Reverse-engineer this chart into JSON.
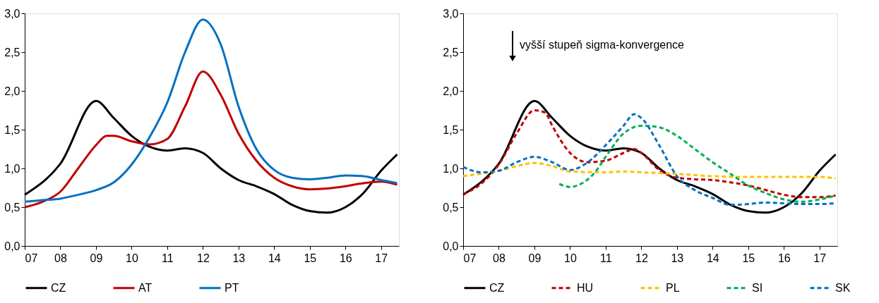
{
  "chart_data": [
    {
      "type": "line",
      "xlim": [
        7,
        17.5
      ],
      "xticks": [
        {
          "value": 7,
          "label": "07"
        },
        {
          "value": 8,
          "label": "08"
        },
        {
          "value": 9,
          "label": "09"
        },
        {
          "value": 10,
          "label": "10"
        },
        {
          "value": 11,
          "label": "11"
        },
        {
          "value": 12,
          "label": "12"
        },
        {
          "value": 13,
          "label": "13"
        },
        {
          "value": 14,
          "label": "14"
        },
        {
          "value": 15,
          "label": "15"
        },
        {
          "value": 16,
          "label": "16"
        },
        {
          "value": 17,
          "label": "17"
        }
      ],
      "ylim": [
        0,
        3
      ],
      "yticks": [
        {
          "value": 0,
          "label": "0,0"
        },
        {
          "value": 0.5,
          "label": "0,5"
        },
        {
          "value": 1,
          "label": "1,0"
        },
        {
          "value": 1.5,
          "label": "1,5"
        },
        {
          "value": 2,
          "label": "2,0"
        },
        {
          "value": 2.5,
          "label": "2,5"
        },
        {
          "value": 3,
          "label": "3,0"
        }
      ],
      "grid": false,
      "legend": "bottom",
      "marker": "none",
      "series": [
        {
          "name": "CZ",
          "color": "#000000",
          "line_style": "solid",
          "x": [
            7,
            8,
            9,
            9.5,
            10,
            10.5,
            11,
            11.5,
            12,
            12.5,
            13,
            13.5,
            14,
            14.5,
            15,
            15.5,
            16,
            16.5,
            17,
            17.45
          ],
          "values": [
            0.66,
            1.06,
            1.87,
            1.65,
            1.42,
            1.28,
            1.23,
            1.26,
            1.2,
            1.0,
            0.85,
            0.77,
            0.67,
            0.53,
            0.45,
            0.43,
            0.5,
            0.68,
            0.97,
            1.18
          ]
        },
        {
          "name": "AT",
          "color": "#c00000",
          "line_style": "solid",
          "x": [
            7,
            7.5,
            8,
            8.5,
            9,
            9.3,
            9.5,
            10,
            10.5,
            11,
            11.5,
            12,
            12.5,
            13,
            13.5,
            14,
            14.5,
            15,
            15.5,
            16,
            16.5,
            17,
            17.45
          ],
          "values": [
            0.5,
            0.57,
            0.7,
            1.0,
            1.3,
            1.42,
            1.42,
            1.35,
            1.31,
            1.38,
            1.8,
            2.25,
            1.95,
            1.45,
            1.1,
            0.88,
            0.77,
            0.73,
            0.74,
            0.77,
            0.81,
            0.83,
            0.79
          ]
        },
        {
          "name": "PT",
          "color": "#0070c0",
          "line_style": "solid",
          "x": [
            7,
            7.5,
            8,
            8.5,
            9,
            9.5,
            10,
            10.5,
            11,
            11.5,
            12,
            12.5,
            13,
            13.5,
            14,
            14.5,
            15,
            15.5,
            16,
            16.5,
            17,
            17.45
          ],
          "values": [
            0.57,
            0.59,
            0.61,
            0.66,
            0.72,
            0.82,
            1.05,
            1.4,
            1.85,
            2.5,
            2.92,
            2.6,
            1.8,
            1.25,
            0.98,
            0.88,
            0.86,
            0.88,
            0.91,
            0.9,
            0.85,
            0.81
          ]
        }
      ]
    },
    {
      "type": "line",
      "xlim": [
        7,
        17.5
      ],
      "xticks": [
        {
          "value": 7,
          "label": "07"
        },
        {
          "value": 8,
          "label": "08"
        },
        {
          "value": 9,
          "label": "09"
        },
        {
          "value": 10,
          "label": "10"
        },
        {
          "value": 11,
          "label": "11"
        },
        {
          "value": 12,
          "label": "12"
        },
        {
          "value": 13,
          "label": "13"
        },
        {
          "value": 14,
          "label": "14"
        },
        {
          "value": 15,
          "label": "15"
        },
        {
          "value": 16,
          "label": "16"
        },
        {
          "value": 17,
          "label": "17"
        }
      ],
      "ylim": [
        0,
        3
      ],
      "yticks": [
        {
          "value": 0,
          "label": "0,0"
        },
        {
          "value": 0.5,
          "label": "0,5"
        },
        {
          "value": 1,
          "label": "1,0"
        },
        {
          "value": 1.5,
          "label": "1,5"
        },
        {
          "value": 2,
          "label": "2,0"
        },
        {
          "value": 2.5,
          "label": "2,5"
        },
        {
          "value": 3,
          "label": "3,0"
        }
      ],
      "grid": false,
      "legend": "bottom",
      "marker": "none",
      "annotations": [
        "vyšší stupeň sigma-konvergence"
      ],
      "series": [
        {
          "name": "CZ",
          "color": "#000000",
          "line_style": "solid",
          "x": [
            7,
            8,
            9,
            9.5,
            10,
            10.5,
            11,
            11.5,
            12,
            12.5,
            13,
            13.5,
            14,
            14.5,
            15,
            15.5,
            16,
            16.5,
            17,
            17.45
          ],
          "values": [
            0.66,
            1.06,
            1.87,
            1.65,
            1.42,
            1.28,
            1.23,
            1.26,
            1.2,
            1.0,
            0.85,
            0.77,
            0.67,
            0.53,
            0.45,
            0.43,
            0.5,
            0.68,
            0.97,
            1.18
          ]
        },
        {
          "name": "HU",
          "color": "#c00000",
          "line_style": "dashed",
          "x": [
            7,
            7.5,
            8,
            8.5,
            9,
            9.3,
            9.5,
            10,
            10.5,
            11,
            11.5,
            11.8,
            12,
            12.5,
            13,
            13.5,
            14,
            14.5,
            15,
            15.5,
            16,
            16.5,
            17,
            17.45
          ],
          "values": [
            0.67,
            0.8,
            1.05,
            1.45,
            1.75,
            1.72,
            1.55,
            1.2,
            1.08,
            1.1,
            1.2,
            1.25,
            1.2,
            0.98,
            0.88,
            0.86,
            0.85,
            0.82,
            0.78,
            0.72,
            0.66,
            0.63,
            0.63,
            0.65
          ]
        },
        {
          "name": "PL",
          "color": "#ffc000",
          "line_style": "dashed",
          "x": [
            7,
            8,
            9,
            9.5,
            10,
            11,
            11.5,
            12,
            13,
            14,
            15,
            16,
            17,
            17.45
          ],
          "values": [
            0.9,
            0.97,
            1.07,
            1.03,
            0.96,
            0.95,
            0.96,
            0.95,
            0.93,
            0.9,
            0.89,
            0.89,
            0.89,
            0.87
          ]
        },
        {
          "name": "SI",
          "color": "#00b050",
          "line_style": "dashed",
          "x": [
            9.7,
            10,
            10.3,
            10.7,
            11,
            11.5,
            12,
            12.5,
            13,
            13.5,
            14,
            14.5,
            15,
            15.5,
            16,
            16.5,
            17,
            17.45
          ],
          "values": [
            0.8,
            0.76,
            0.8,
            0.95,
            1.15,
            1.45,
            1.55,
            1.53,
            1.42,
            1.25,
            1.08,
            0.93,
            0.78,
            0.68,
            0.6,
            0.57,
            0.6,
            0.65
          ]
        },
        {
          "name": "SK",
          "color": "#0070c0",
          "line_style": "dashed",
          "x": [
            7,
            7.5,
            8,
            8.5,
            9,
            9.5,
            10,
            10.5,
            11,
            11.5,
            11.8,
            12,
            12.5,
            13,
            13.5,
            14,
            14.5,
            15,
            15.5,
            16,
            16.5,
            17,
            17.45
          ],
          "values": [
            1.02,
            0.95,
            0.97,
            1.08,
            1.15,
            1.08,
            0.98,
            1.08,
            1.3,
            1.55,
            1.7,
            1.65,
            1.3,
            0.9,
            0.72,
            0.62,
            0.53,
            0.54,
            0.56,
            0.55,
            0.54,
            0.54,
            0.55
          ]
        }
      ]
    }
  ]
}
